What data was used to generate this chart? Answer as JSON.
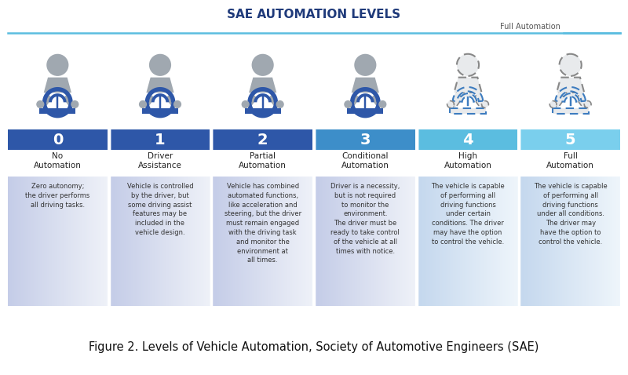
{
  "title": "SAE AUTOMATION LEVELS",
  "title_color": "#1f3a7a",
  "title_fontsize": 11,
  "caption": "Figure 2. Levels of Vehicle Automation, Society of Automotive Engineers (SAE)",
  "caption_fontsize": 10.5,
  "full_automation_label": "Full Automation",
  "levels": [
    "0",
    "1",
    "2",
    "3",
    "4",
    "5"
  ],
  "level_names": [
    "No\nAutomation",
    "Driver\nAssistance",
    "Partial\nAutomation",
    "Conditional\nAutomation",
    "High\nAutomation",
    "Full\nAutomation"
  ],
  "descriptions": [
    "Zero autonomy;\nthe driver performs\nall driving tasks.",
    "Vehicle is controlled\nby the driver, but\nsome driving assist\nfeatures may be\nincluded in the\nvehicle design.",
    "Vehicle has combined\nautomated functions,\nlike acceleration and\nsteering, but the driver\nmust remain engaged\nwith the driving task\nand monitor the\nenvironment at\nall times.",
    "Driver is a necessity,\nbut is not required\nto monitor the\nenvironment.\nThe driver must be\nready to take control\nof the vehicle at all\ntimes with notice.",
    "The vehicle is capable\nof performing all\ndriving functions\nunder certain\nconditions. The driver\nmay have the option\nto control the vehicle.",
    "The vehicle is capable\nof performing all\ndriving functions\nunder all conditions.\nThe driver may\nhave the option to\ncontrol the vehicle."
  ],
  "number_box_colors": [
    "#2e57a8",
    "#2e57a8",
    "#2e57a8",
    "#3d8ec9",
    "#5bbde0",
    "#7acfed"
  ],
  "driver_solid_indices": [
    0,
    1,
    2,
    3
  ],
  "driver_dashed_indices": [
    4,
    5
  ],
  "steering_color_solid": "#2e57a8",
  "steering_color_dashed": "#3d7cbf",
  "body_color_solid": "#a0a8b0",
  "body_color_dashed": "#b0b8c0",
  "line_color": "#5bbde0",
  "bg_color": "#ffffff",
  "desc_bg_colors_left": [
    "#c5cde8",
    "#c5cde8",
    "#c5cde8",
    "#c5cde8",
    "#c5d8ee",
    "#c5d8ee"
  ],
  "desc_bg_colors_right": [
    "#eef1f8",
    "#eef1f8",
    "#eef1f8",
    "#eef1f8",
    "#eef5fb",
    "#eef5fb"
  ]
}
